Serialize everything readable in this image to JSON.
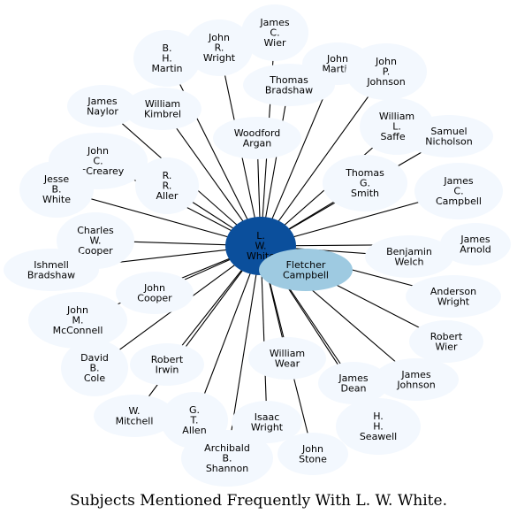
{
  "caption": "Subjects Mentioned Frequently With L. W. White.",
  "colors": {
    "edge": "#000000",
    "hub": "#0b4f9c",
    "highlight": "#9ecae1",
    "node": "#f3f8fe",
    "label": "#000000"
  },
  "hub": {
    "id": "lw-white",
    "lines": [
      "L.",
      "W.",
      "White"
    ]
  },
  "highlight": {
    "id": "fletcher-campbell",
    "lines": [
      "Fletcher",
      "Campbell"
    ]
  },
  "nodes": [
    {
      "id": "james-c-wier",
      "lines": [
        "James",
        "C.",
        "Wier"
      ]
    },
    {
      "id": "john-r-wright",
      "lines": [
        "John",
        "R.",
        "Wright"
      ]
    },
    {
      "id": "b-h-martin",
      "lines": [
        "B.",
        "H.",
        "Martin"
      ]
    },
    {
      "id": "john-martin",
      "lines": [
        "John",
        "Martin"
      ]
    },
    {
      "id": "john-p-johnson",
      "lines": [
        "John",
        "P.",
        "Johnson"
      ]
    },
    {
      "id": "thomas-bradshaw",
      "lines": [
        "Thomas",
        "Bradshaw"
      ]
    },
    {
      "id": "james-naylor",
      "lines": [
        "James",
        "Naylor"
      ]
    },
    {
      "id": "william-kimbrel",
      "lines": [
        "William",
        "Kimbrel"
      ]
    },
    {
      "id": "william-l-saffert",
      "lines": [
        "William",
        "L.",
        "Saffert"
      ]
    },
    {
      "id": "samuel-nicholson",
      "lines": [
        "Samuel",
        "Nicholson"
      ]
    },
    {
      "id": "woodford-argan",
      "lines": [
        "Woodford",
        "Argan"
      ]
    },
    {
      "id": "john-c-mccrearey",
      "lines": [
        "John",
        "C.",
        "McCrearey"
      ]
    },
    {
      "id": "jesse-b-white",
      "lines": [
        "Jesse",
        "B.",
        "White"
      ]
    },
    {
      "id": "r-r-aller",
      "lines": [
        "R.",
        "R.",
        "Aller"
      ]
    },
    {
      "id": "thomas-g-smith",
      "lines": [
        "Thomas",
        "G.",
        "Smith"
      ]
    },
    {
      "id": "james-c-campbell",
      "lines": [
        "James",
        "C.",
        "Campbell"
      ]
    },
    {
      "id": "charles-w-cooper",
      "lines": [
        "Charles",
        "W.",
        "Cooper"
      ]
    },
    {
      "id": "james-arnold",
      "lines": [
        "James",
        "Arnold"
      ]
    },
    {
      "id": "ishmell-bradshaw",
      "lines": [
        "Ishmell",
        "Bradshaw"
      ]
    },
    {
      "id": "benjamin-welch",
      "lines": [
        "Benjamin",
        "Welch"
      ]
    },
    {
      "id": "john-cooper",
      "lines": [
        "John",
        "Cooper"
      ]
    },
    {
      "id": "anderson-wright",
      "lines": [
        "Anderson",
        "Wright"
      ]
    },
    {
      "id": "john-m-mcconnell",
      "lines": [
        "John",
        "M.",
        "McConnell"
      ]
    },
    {
      "id": "robert-wier",
      "lines": [
        "Robert",
        "Wier"
      ]
    },
    {
      "id": "david-b-cole",
      "lines": [
        "David",
        "B.",
        "Cole"
      ]
    },
    {
      "id": "robert-irwin",
      "lines": [
        "Robert",
        "Irwin"
      ]
    },
    {
      "id": "william-wear",
      "lines": [
        "William",
        "Wear"
      ]
    },
    {
      "id": "james-johnson",
      "lines": [
        "James",
        "Johnson"
      ]
    },
    {
      "id": "james-dean",
      "lines": [
        "James",
        "Dean"
      ]
    },
    {
      "id": "w-mitchell",
      "lines": [
        "W.",
        "Mitchell"
      ]
    },
    {
      "id": "g-t-allen",
      "lines": [
        "G.",
        "T.",
        "Allen"
      ]
    },
    {
      "id": "isaac-wright",
      "lines": [
        "Isaac",
        "Wright"
      ]
    },
    {
      "id": "h-h-seawell",
      "lines": [
        "H.",
        "H.",
        "Seawell"
      ]
    },
    {
      "id": "archibald-b-shannon",
      "lines": [
        "Archibald",
        "B.",
        "Shannon"
      ]
    },
    {
      "id": "john-stone",
      "lines": [
        "John",
        "Stone"
      ]
    }
  ]
}
